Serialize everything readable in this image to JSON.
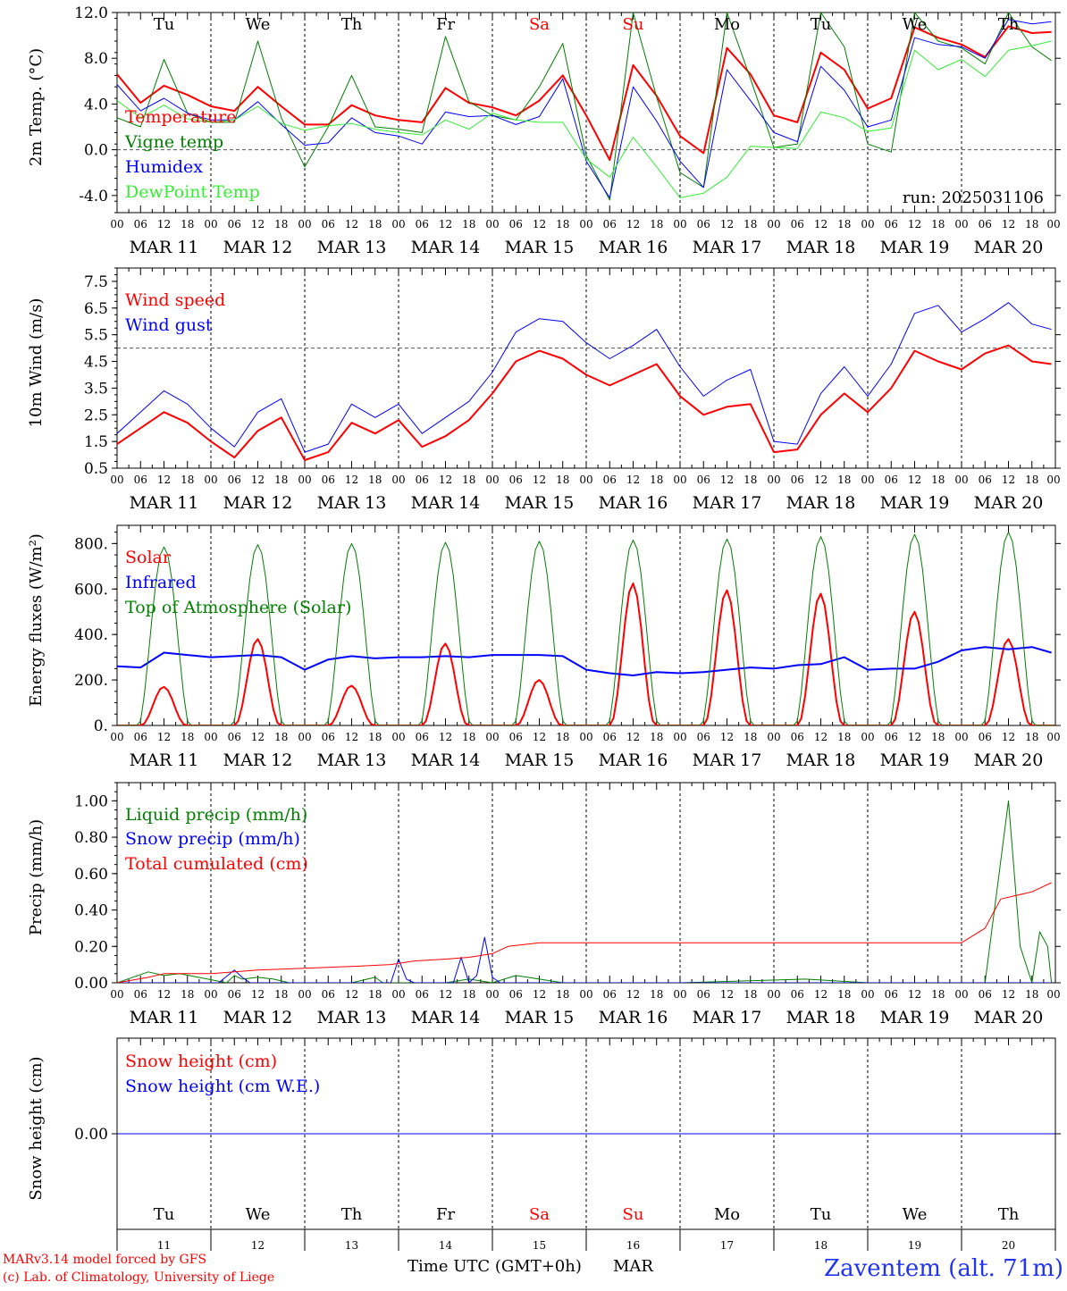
{
  "footer": {
    "model_credit": "MARv3.14 model forced by GFS",
    "lab_credit": "(c) Lab. of Climatology, University of Liege",
    "x_axis_title": "Time UTC (GMT+0h)",
    "month": "MAR",
    "station": "Zaventem (alt. 71m)"
  },
  "colors": {
    "red": "#ff0000",
    "green": "#007f00",
    "blue": "#0000ff",
    "lightgreen": "#33ee33",
    "grid": "#555555"
  },
  "time_axis": {
    "hour_ticks": [
      "00",
      "06",
      "12",
      "18"
    ],
    "end_tick": "00",
    "dates": [
      "MAR 11",
      "MAR 12",
      "MAR 13",
      "MAR 14",
      "MAR 15",
      "MAR 16",
      "MAR 17",
      "MAR 18",
      "MAR 19",
      "MAR 20"
    ],
    "weekdays": [
      {
        "label": "Tu",
        "weekend": false
      },
      {
        "label": "We",
        "weekend": false
      },
      {
        "label": "Th",
        "weekend": false
      },
      {
        "label": "Fr",
        "weekend": false
      },
      {
        "label": "Sa",
        "weekend": true
      },
      {
        "label": "Su",
        "weekend": true
      },
      {
        "label": "Mo",
        "weekend": false
      },
      {
        "label": "Tu",
        "weekend": false
      },
      {
        "label": "We",
        "weekend": false
      },
      {
        "label": "Th",
        "weekend": false
      }
    ],
    "day_numbers": [
      "11",
      "12",
      "13",
      "14",
      "15",
      "16",
      "17",
      "18",
      "19",
      "20"
    ]
  },
  "chart_data": [
    {
      "type": "line",
      "ylabel": "2m Temp. (°C)",
      "ylim": [
        -5.5,
        12.0
      ],
      "yticks": [
        "12.0",
        "8.0",
        "4.0",
        "0.0",
        "-4.0"
      ],
      "ytick_values": [
        12,
        8,
        4,
        0,
        -4
      ],
      "hline": 0,
      "annotation": "run: 2025031106",
      "weekday_row": true,
      "x_unit": "hours since MAR 11 00 UTC",
      "series": [
        {
          "name": "Temperature",
          "color": "#ff0000",
          "width": 2,
          "x": [
            0,
            6,
            12,
            18,
            24,
            30,
            36,
            42,
            48,
            54,
            60,
            66,
            72,
            78,
            84,
            90,
            96,
            102,
            108,
            114,
            120,
            126,
            132,
            138,
            144,
            150,
            156,
            162,
            168,
            174,
            180,
            186,
            192,
            198,
            204,
            210,
            216,
            222,
            228,
            234,
            239
          ],
          "y": [
            6.6,
            4.1,
            5.6,
            4.8,
            3.8,
            3.4,
            5.5,
            3.8,
            2.2,
            2.2,
            3.9,
            3.0,
            2.6,
            2.4,
            5.4,
            4.1,
            3.7,
            3.0,
            4.3,
            6.5,
            3.0,
            -0.9,
            7.4,
            4.7,
            1.2,
            -0.3,
            8.9,
            6.6,
            3.0,
            2.4,
            8.5,
            7.0,
            3.6,
            4.5,
            10.7,
            9.8,
            9.2,
            8.1,
            10.8,
            10.2,
            10.3
          ]
        },
        {
          "name": "Vigne temp",
          "color": "#007f00",
          "width": 1,
          "x": [
            0,
            6,
            12,
            18,
            24,
            30,
            36,
            42,
            48,
            54,
            60,
            66,
            72,
            78,
            84,
            90,
            96,
            102,
            108,
            114,
            120,
            126,
            132,
            138,
            144,
            150,
            156,
            162,
            168,
            174,
            180,
            186,
            192,
            198,
            204,
            210,
            216,
            222,
            228,
            234,
            239
          ],
          "y": [
            2.8,
            2.0,
            7.9,
            3.2,
            2.4,
            2.4,
            9.5,
            2.8,
            -1.5,
            2.0,
            6.5,
            2.0,
            1.8,
            1.5,
            9.9,
            4.2,
            3.0,
            2.6,
            5.5,
            9.3,
            -0.5,
            -4.4,
            12.0,
            4.6,
            -2.0,
            -3.3,
            12.0,
            6.2,
            0.2,
            0.5,
            12.0,
            9.0,
            0.5,
            -0.2,
            12.0,
            9.5,
            8.9,
            7.5,
            12.0,
            9.0,
            7.8
          ]
        },
        {
          "name": "Humidex",
          "color": "#0000ff",
          "width": 1,
          "x": [
            0,
            6,
            12,
            18,
            24,
            30,
            36,
            42,
            48,
            54,
            60,
            66,
            72,
            78,
            84,
            90,
            96,
            102,
            108,
            114,
            120,
            126,
            132,
            138,
            144,
            150,
            156,
            162,
            168,
            174,
            180,
            186,
            192,
            198,
            204,
            210,
            216,
            222,
            228,
            234,
            239
          ],
          "y": [
            5.7,
            3.4,
            4.5,
            3.2,
            2.6,
            2.6,
            4.2,
            2.2,
            0.4,
            0.6,
            2.8,
            1.5,
            1.2,
            0.5,
            3.3,
            2.9,
            3.0,
            2.2,
            2.9,
            6.2,
            -1.0,
            -4.2,
            5.5,
            2.5,
            -1.0,
            -3.3,
            7.0,
            4.3,
            1.5,
            0.7,
            7.3,
            5.2,
            2.0,
            2.6,
            9.8,
            9.2,
            9.0,
            8.0,
            11.4,
            11.0,
            11.2
          ]
        },
        {
          "name": "DewPoint Temp",
          "color": "#33ee33",
          "width": 1,
          "x": [
            0,
            6,
            12,
            18,
            24,
            30,
            36,
            42,
            48,
            54,
            60,
            66,
            72,
            78,
            84,
            90,
            96,
            102,
            108,
            114,
            120,
            126,
            132,
            138,
            144,
            150,
            156,
            162,
            168,
            174,
            180,
            186,
            192,
            198,
            204,
            210,
            216,
            222,
            228,
            234,
            239
          ],
          "y": [
            4.3,
            2.8,
            3.9,
            2.7,
            2.4,
            2.6,
            3.8,
            2.3,
            1.7,
            2.1,
            2.3,
            1.8,
            1.5,
            1.3,
            2.6,
            1.8,
            3.2,
            2.6,
            2.4,
            2.4,
            -0.8,
            -2.4,
            1.1,
            -1.5,
            -4.2,
            -3.8,
            -2.4,
            0.3,
            0.2,
            0.1,
            3.3,
            2.8,
            1.6,
            1.9,
            8.7,
            7.0,
            7.9,
            6.4,
            8.7,
            9.1,
            9.5
          ]
        }
      ]
    },
    {
      "type": "line",
      "ylabel": "10m Wind (m/s)",
      "ylim": [
        0.5,
        8.0
      ],
      "yticks": [
        "7.5",
        "6.5",
        "5.5",
        "4.5",
        "3.5",
        "2.5",
        "1.5",
        "0.5"
      ],
      "ytick_values": [
        7.5,
        6.5,
        5.5,
        4.5,
        3.5,
        2.5,
        1.5,
        0.5
      ],
      "hline": 5.0,
      "x_unit": "hours since MAR 11 00 UTC",
      "series": [
        {
          "name": "Wind speed",
          "color": "#ff0000",
          "width": 2,
          "x": [
            0,
            6,
            12,
            18,
            24,
            30,
            36,
            42,
            48,
            54,
            60,
            66,
            72,
            78,
            84,
            90,
            96,
            102,
            108,
            114,
            120,
            126,
            132,
            138,
            144,
            150,
            156,
            162,
            168,
            174,
            180,
            186,
            192,
            198,
            204,
            210,
            216,
            222,
            228,
            234,
            239
          ],
          "y": [
            1.4,
            2.0,
            2.6,
            2.2,
            1.5,
            0.9,
            1.9,
            2.4,
            0.8,
            1.1,
            2.2,
            1.8,
            2.3,
            1.3,
            1.7,
            2.3,
            3.3,
            4.5,
            4.9,
            4.6,
            4.0,
            3.6,
            4.0,
            4.4,
            3.2,
            2.5,
            2.8,
            2.9,
            1.1,
            1.2,
            2.5,
            3.3,
            2.6,
            3.5,
            4.9,
            4.5,
            4.2,
            4.8,
            5.1,
            4.5,
            4.4
          ]
        },
        {
          "name": "Wind gust",
          "color": "#0000ff",
          "width": 1,
          "x": [
            0,
            6,
            12,
            18,
            24,
            30,
            36,
            42,
            48,
            54,
            60,
            66,
            72,
            78,
            84,
            90,
            96,
            102,
            108,
            114,
            120,
            126,
            132,
            138,
            144,
            150,
            156,
            162,
            168,
            174,
            180,
            186,
            192,
            198,
            204,
            210,
            216,
            222,
            228,
            234,
            239
          ],
          "y": [
            1.8,
            2.6,
            3.4,
            2.9,
            2.0,
            1.3,
            2.6,
            3.1,
            1.1,
            1.4,
            2.9,
            2.4,
            2.9,
            1.8,
            2.4,
            3.0,
            4.1,
            5.6,
            6.1,
            6.0,
            5.2,
            4.6,
            5.1,
            5.7,
            4.3,
            3.2,
            3.8,
            4.2,
            1.5,
            1.4,
            3.3,
            4.3,
            3.2,
            4.4,
            6.3,
            6.6,
            5.6,
            6.1,
            6.7,
            5.9,
            5.7
          ]
        }
      ]
    },
    {
      "type": "line",
      "ylabel": "Energy fluxes (W/m²)",
      "ylim": [
        0,
        880
      ],
      "yticks": [
        "800.",
        "600.",
        "400.",
        "200.",
        "0."
      ],
      "ytick_values": [
        800,
        600,
        400,
        200,
        0
      ],
      "x_unit": "hours since MAR 11 00 UTC",
      "series": [
        {
          "name": "Solar",
          "color": "#ff0000",
          "width": 2,
          "daily_peak": [
            170,
            380,
            175,
            360,
            200,
            625,
            595,
            580,
            500,
            380
          ]
        },
        {
          "name": "Infrared",
          "color": "#0000ff",
          "width": 2,
          "x": [
            0,
            6,
            12,
            18,
            24,
            30,
            36,
            42,
            48,
            54,
            60,
            66,
            72,
            78,
            84,
            90,
            96,
            102,
            108,
            114,
            120,
            126,
            132,
            138,
            144,
            150,
            156,
            162,
            168,
            174,
            180,
            186,
            192,
            198,
            204,
            210,
            216,
            222,
            228,
            234,
            239
          ],
          "y": [
            260,
            255,
            320,
            310,
            300,
            305,
            310,
            300,
            245,
            290,
            305,
            295,
            300,
            300,
            305,
            300,
            310,
            310,
            310,
            305,
            245,
            230,
            220,
            235,
            230,
            235,
            245,
            255,
            250,
            265,
            270,
            300,
            245,
            250,
            250,
            280,
            330,
            345,
            335,
            345,
            320
          ]
        },
        {
          "name": "Top of Atmosphere (Solar)",
          "color": "#007f00",
          "width": 1,
          "daily_peak": [
            785,
            795,
            800,
            805,
            810,
            815,
            820,
            830,
            840,
            850
          ]
        }
      ]
    },
    {
      "type": "line",
      "ylabel": "Precip (mm/h)",
      "ylim": [
        0,
        1.1
      ],
      "yticks": [
        "1.00",
        "0.80",
        "0.60",
        "0.40",
        "0.20",
        "0.00"
      ],
      "ytick_values": [
        1.0,
        0.8,
        0.6,
        0.4,
        0.2,
        0.0
      ],
      "x_unit": "hours since MAR 11 00 UTC",
      "series": [
        {
          "name": "Liquid precip (mm/h)",
          "color": "#007f00",
          "width": 1,
          "x": [
            0,
            8,
            12,
            16,
            28,
            30,
            32,
            36,
            40,
            44,
            60,
            66,
            68,
            72,
            84,
            90,
            96,
            102,
            108,
            114,
            144,
            176,
            192,
            216,
            222,
            225,
            228,
            231,
            234,
            236,
            238,
            239
          ],
          "y": [
            0,
            0.06,
            0.04,
            0.05,
            0,
            0.04,
            0.02,
            0.03,
            0.02,
            0,
            0,
            0.03,
            0,
            0,
            0,
            0.02,
            0,
            0.04,
            0.02,
            0,
            0,
            0.02,
            0,
            0,
            0,
            0.5,
            1.0,
            0.2,
            0,
            0.28,
            0.2,
            0
          ]
        },
        {
          "name": "Snow precip (mm/h)",
          "color": "#0000ff",
          "width": 1,
          "x": [
            0,
            26,
            30,
            32,
            34,
            70,
            72,
            74,
            76,
            86,
            88,
            90,
            92,
            94,
            96,
            98,
            100,
            239
          ],
          "y": [
            0,
            0,
            0.07,
            0.03,
            0,
            0,
            0.13,
            0.02,
            0,
            0,
            0.14,
            0,
            0.04,
            0.25,
            0.03,
            0,
            0,
            0
          ]
        },
        {
          "name": "Total cumulated (cm)",
          "color": "#ff0000",
          "width": 1,
          "x": [
            0,
            8,
            12,
            24,
            36,
            48,
            60,
            70,
            76,
            84,
            90,
            96,
            100,
            108,
            120,
            168,
            216,
            222,
            226,
            234,
            239
          ],
          "y": [
            0,
            0.03,
            0.05,
            0.05,
            0.07,
            0.08,
            0.09,
            0.1,
            0.12,
            0.13,
            0.14,
            0.16,
            0.2,
            0.22,
            0.22,
            0.22,
            0.22,
            0.3,
            0.46,
            0.5,
            0.55
          ]
        }
      ]
    },
    {
      "type": "line",
      "ylabel": "Snow height (cm)",
      "ylim": [
        -1,
        1
      ],
      "yticks": [
        "0.00"
      ],
      "ytick_values": [
        0
      ],
      "weekday_row": true,
      "x_unit": "hours since MAR 11 00 UTC",
      "series": [
        {
          "name": "Snow height (cm)",
          "color": "#ff0000",
          "width": 1,
          "x": [
            0,
            240
          ],
          "y": [
            0,
            0
          ]
        },
        {
          "name": "Snow height (cm W.E.)",
          "color": "#0000ff",
          "width": 1,
          "x": [
            0,
            240
          ],
          "y": [
            0,
            0
          ]
        }
      ]
    }
  ]
}
